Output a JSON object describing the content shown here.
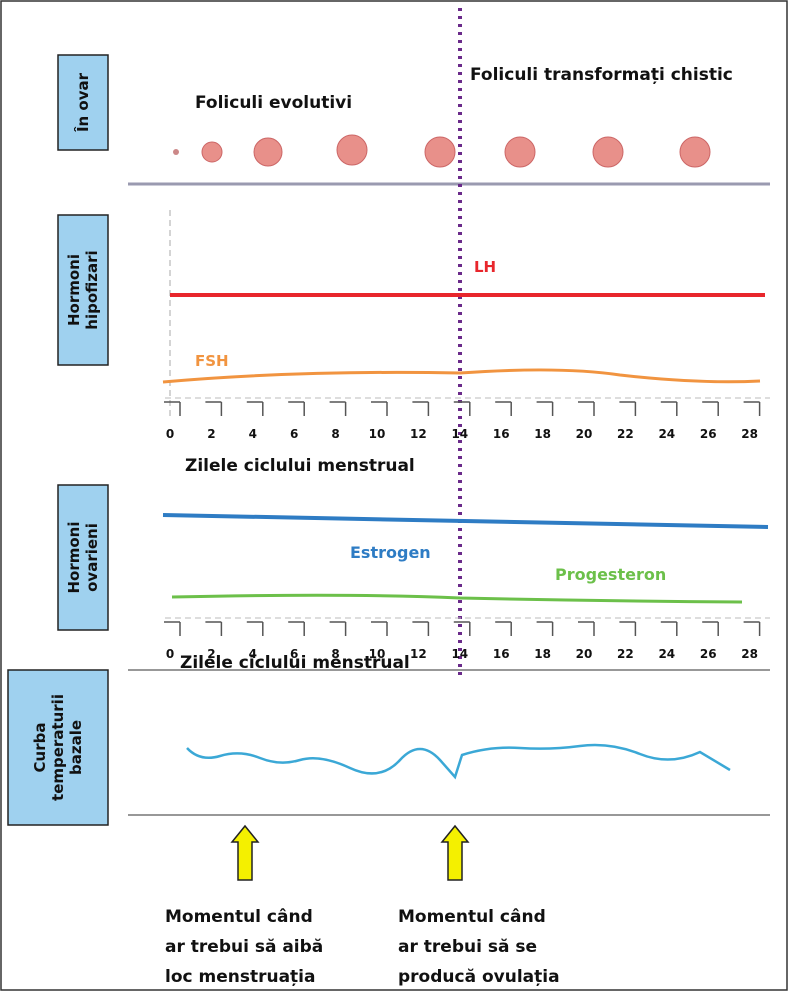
{
  "sections": [
    {
      "lines": [
        "În ovar"
      ]
    },
    {
      "lines": [
        "Hormoni",
        "hipofizari"
      ]
    },
    {
      "lines": [
        "Hormoni",
        "ovarieni"
      ]
    },
    {
      "lines": [
        "Curba",
        "temperaturii",
        "bazale"
      ]
    }
  ],
  "ovary": {
    "left": "Foliculi evolutivi",
    "right": "Foliculi transformați chistic"
  },
  "hormones": {
    "lh": "LH",
    "fsh": "FSH",
    "estrogen": "Estrogen",
    "progesteron": "Progesteron"
  },
  "axis": {
    "title": "Zilele ciclului menstrual",
    "ticks": [
      "0",
      "2",
      "4",
      "6",
      "8",
      "10",
      "12",
      "14",
      "16",
      "18",
      "20",
      "22",
      "24",
      "26",
      "28"
    ]
  },
  "notes": [
    {
      "lines": [
        "Momentul când",
        "ar trebui să aibă",
        "loc menstruația"
      ]
    },
    {
      "lines": [
        "Momentul când",
        "ar trebui să se",
        "producă ovulația"
      ]
    }
  ]
}
